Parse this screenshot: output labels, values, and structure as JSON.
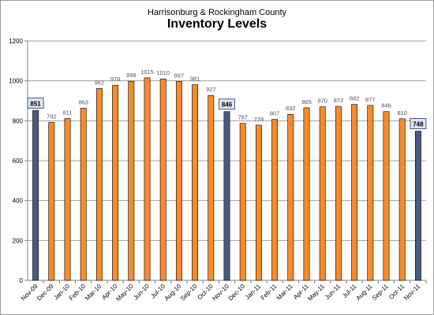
{
  "chart_data": {
    "type": "bar",
    "subtitle": "Harrisonburg & Rockingham County",
    "title": "Inventory Levels",
    "xlabel": "",
    "ylabel": "",
    "ylim": [
      0,
      1200
    ],
    "yticks": [
      0,
      200,
      400,
      600,
      800,
      1000,
      1200
    ],
    "grid": true,
    "legend": "none",
    "categories": [
      "Nov-09",
      "Dec-09",
      "Jan-10",
      "Feb-10",
      "Mar-10",
      "Apr-10",
      "May-10",
      "Jun-10",
      "Jul-10",
      "Aug-10",
      "Sep-10",
      "Oct-10",
      "Nov-10",
      "Dec-10",
      "Jan-11",
      "Feb-11",
      "Mar-11",
      "Apr-11",
      "May-11",
      "Jun-11",
      "Jul-11",
      "Aug-11",
      "Sep-11",
      "Oct-11",
      "Nov-11"
    ],
    "values": [
      851,
      792,
      811,
      863,
      962,
      978,
      998,
      1015,
      1010,
      997,
      981,
      927,
      846,
      787,
      778,
      807,
      832,
      865,
      870,
      872,
      882,
      877,
      846,
      810,
      748
    ],
    "highlighted_categories": [
      "Nov-09",
      "Nov-10",
      "Nov-11"
    ],
    "colors": {
      "bar": "#f98a2a",
      "highlight_bar": "#4a5a82",
      "bar_outline": "#000000",
      "grid": "#a0a0a0",
      "label_box_fill": "#dce6f2",
      "label_box_stroke": "#4a5a82"
    }
  }
}
